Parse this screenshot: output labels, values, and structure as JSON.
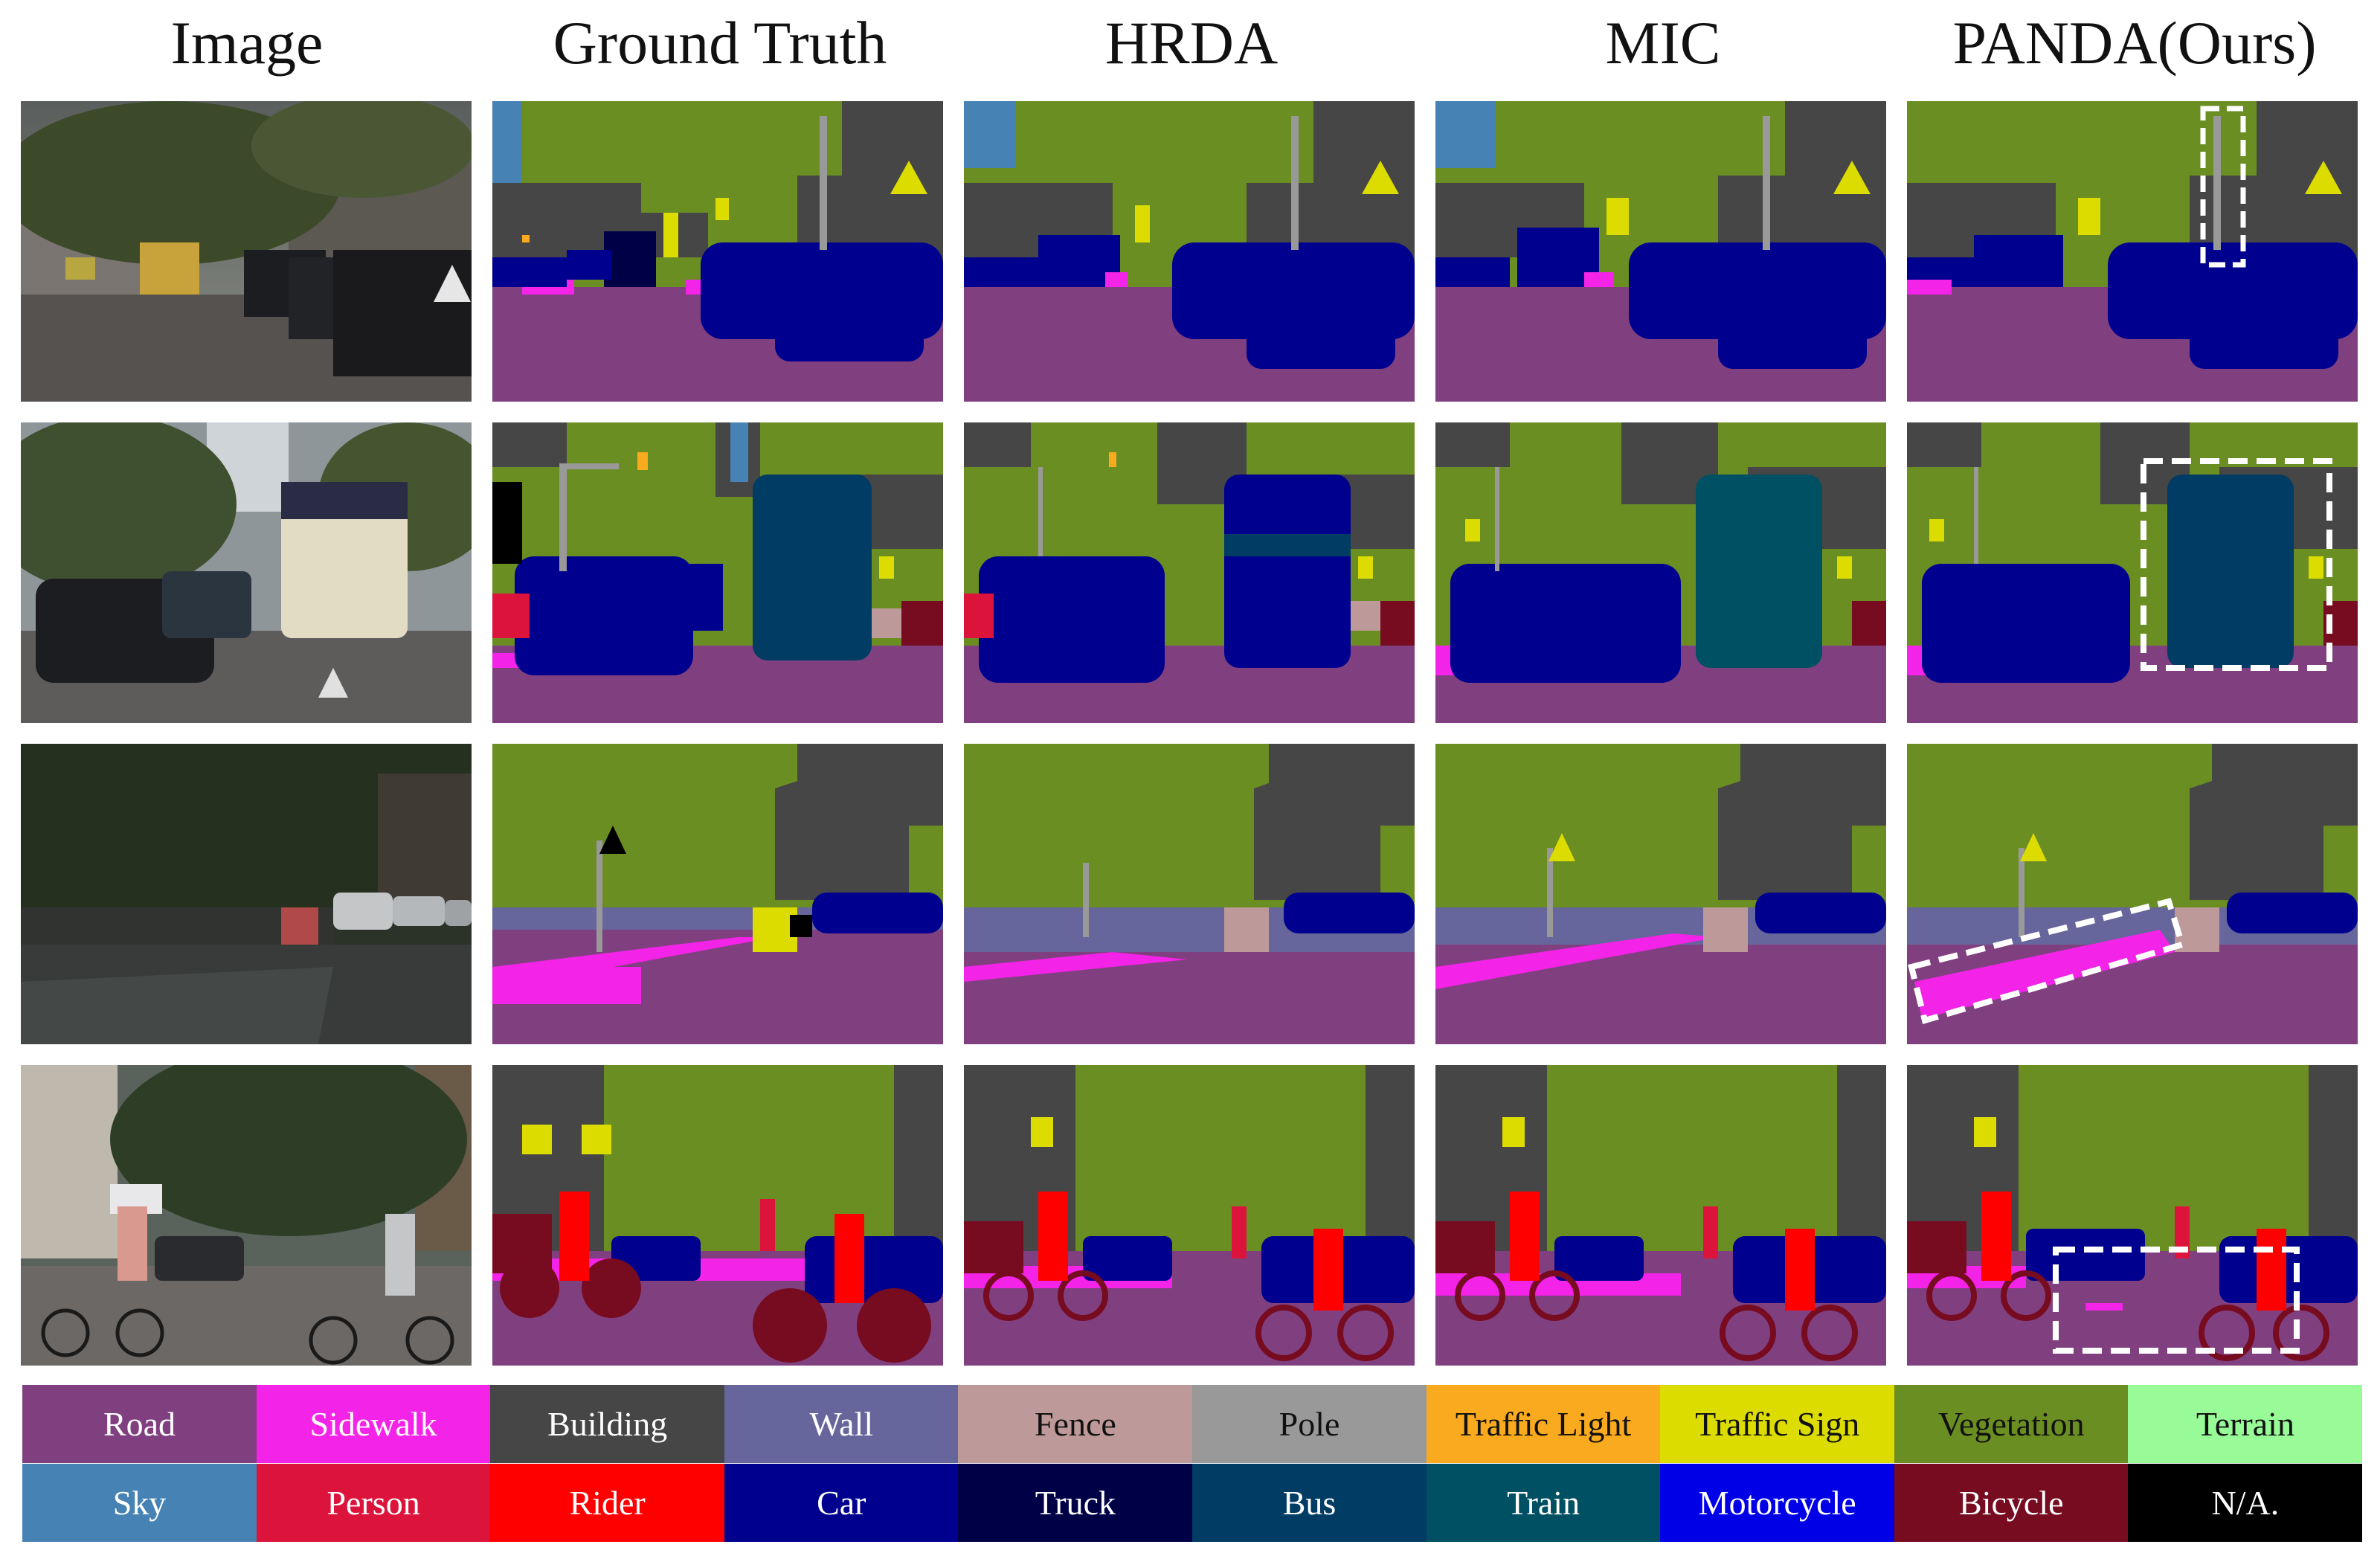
{
  "columns": [
    "Image",
    "Ground Truth",
    "HRDA",
    "MIC",
    "PANDA(Ours)"
  ],
  "rows": [
    {
      "scene": "street-with-parked-cars",
      "highlight": "pole region"
    },
    {
      "scene": "street-with-bus",
      "highlight": "bus region"
    },
    {
      "scene": "sidewalk-along-wall",
      "highlight": "sidewalk region"
    },
    {
      "scene": "cyclists-on-street",
      "highlight": "road region"
    }
  ],
  "palette": {
    "road": "#804080",
    "sidewalk": "#f423e8",
    "building": "#464646",
    "wall": "#66669c",
    "fence": "#be9999",
    "pole": "#999999",
    "traffic_light": "#faaa1e",
    "traffic_sign": "#dcdc00",
    "vegetation": "#6b8e23",
    "terrain": "#98fb98",
    "sky": "#4682b4",
    "person": "#dc143c",
    "rider": "#ff0000",
    "car": "#00008e",
    "truck": "#000046",
    "bus": "#003c64",
    "train": "#005064",
    "motorcycle": "#0000e6",
    "bicycle": "#770b20",
    "na": "#000000"
  },
  "legend": [
    [
      {
        "label": "Road",
        "color": "#804080",
        "text": "#ffffff"
      },
      {
        "label": "Sidewalk",
        "color": "#f423e8",
        "text": "#ffffff"
      },
      {
        "label": "Building",
        "color": "#464646",
        "text": "#ffffff"
      },
      {
        "label": "Wall",
        "color": "#66669c",
        "text": "#ffffff"
      },
      {
        "label": "Fence",
        "color": "#be9999",
        "text": "#111111"
      },
      {
        "label": "Pole",
        "color": "#999999",
        "text": "#111111"
      },
      {
        "label": "Traffic Light",
        "color": "#faaa1e",
        "text": "#111111"
      },
      {
        "label": "Traffic Sign",
        "color": "#dcdc00",
        "text": "#111111"
      },
      {
        "label": "Vegetation",
        "color": "#6b8e23",
        "text": "#111111"
      },
      {
        "label": "Terrain",
        "color": "#98fb98",
        "text": "#111111"
      }
    ],
    [
      {
        "label": "Sky",
        "color": "#4682b4",
        "text": "#ffffff"
      },
      {
        "label": "Person",
        "color": "#dc143c",
        "text": "#ffffff"
      },
      {
        "label": "Rider",
        "color": "#ff0000",
        "text": "#ffffff"
      },
      {
        "label": "Car",
        "color": "#00008e",
        "text": "#ffffff"
      },
      {
        "label": "Truck",
        "color": "#000046",
        "text": "#ffffff"
      },
      {
        "label": "Bus",
        "color": "#003c64",
        "text": "#ffffff"
      },
      {
        "label": "Train",
        "color": "#005064",
        "text": "#ffffff"
      },
      {
        "label": "Motorcycle",
        "color": "#0000e6",
        "text": "#ffffff"
      },
      {
        "label": "Bicycle",
        "color": "#770b20",
        "text": "#ffffff"
      },
      {
        "label": "N/A.",
        "color": "#000000",
        "text": "#ffffff"
      }
    ]
  ]
}
